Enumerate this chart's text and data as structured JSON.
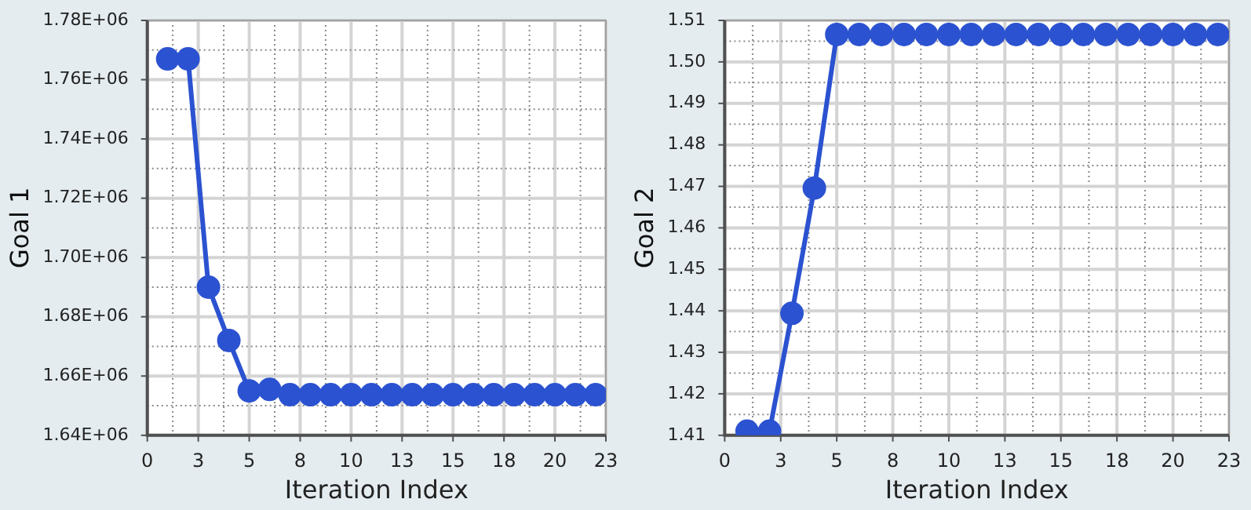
{
  "chart_data": [
    {
      "type": "line",
      "xlabel": "Iteration Index",
      "ylabel": "Goal 1",
      "marker": "circle",
      "grid": true,
      "color": "#2b52d0",
      "x": [
        1,
        2,
        3,
        4,
        5,
        6,
        7,
        8,
        9,
        10,
        11,
        12,
        13,
        14,
        15,
        16,
        17,
        18,
        19,
        20,
        21,
        22
      ],
      "values": [
        1767000,
        1767000,
        1690000,
        1672000,
        1655000,
        1655500,
        1653700,
        1653700,
        1653700,
        1653700,
        1653700,
        1653700,
        1653700,
        1653700,
        1653700,
        1653700,
        1653700,
        1653700,
        1653700,
        1653700,
        1653700,
        1653700
      ],
      "xlim": [
        0,
        22.5
      ],
      "xticks": [
        0,
        {
          "value": 1.25,
          "label": null
        },
        {
          "value": 2.5,
          "label": "3"
        },
        {
          "value": 3.75,
          "label": null
        },
        5,
        {
          "value": 6.25,
          "label": null
        },
        {
          "value": 7.5,
          "label": "8"
        },
        {
          "value": 8.75,
          "label": null
        },
        10,
        {
          "value": 11.25,
          "label": null
        },
        {
          "value": 12.5,
          "label": "13"
        },
        {
          "value": 13.75,
          "label": null
        },
        15,
        {
          "value": 16.25,
          "label": null
        },
        {
          "value": 17.5,
          "label": "18"
        },
        {
          "value": 18.75,
          "label": null
        },
        20,
        {
          "value": 21.25,
          "label": null
        },
        {
          "value": 22.5,
          "label": "23"
        }
      ],
      "ylim": [
        1640000,
        1780000
      ],
      "yticks": [
        {
          "value": 1640000,
          "label": "1.64E+06"
        },
        {
          "value": 1650000,
          "label": null
        },
        {
          "value": 1660000,
          "label": "1.66E+06"
        },
        {
          "value": 1670000,
          "label": null
        },
        {
          "value": 1680000,
          "label": "1.68E+06"
        },
        {
          "value": 1690000,
          "label": null
        },
        {
          "value": 1700000,
          "label": "1.70E+06"
        },
        {
          "value": 1710000,
          "label": null
        },
        {
          "value": 1720000,
          "label": "1.72E+06"
        },
        {
          "value": 1730000,
          "label": null
        },
        {
          "value": 1740000,
          "label": "1.74E+06"
        },
        {
          "value": 1750000,
          "label": null
        },
        {
          "value": 1760000,
          "label": "1.76E+06"
        },
        {
          "value": 1770000,
          "label": null
        },
        {
          "value": 1780000,
          "label": "1.78E+06"
        }
      ]
    },
    {
      "type": "line",
      "xlabel": "Iteration Index",
      "ylabel": "Goal 2",
      "marker": "circle",
      "grid": true,
      "color": "#2b52d0",
      "x": [
        1,
        2,
        3,
        4,
        5,
        6,
        7,
        8,
        9,
        10,
        11,
        12,
        13,
        14,
        15,
        16,
        17,
        18,
        19,
        20,
        21,
        22
      ],
      "values": [
        1.411,
        1.411,
        1.4394,
        1.4696,
        1.5066,
        1.5066,
        1.5066,
        1.5066,
        1.5066,
        1.5066,
        1.5066,
        1.5066,
        1.5066,
        1.5066,
        1.5066,
        1.5066,
        1.5066,
        1.5066,
        1.5066,
        1.5066,
        1.5066,
        1.5066
      ],
      "xlim": [
        0,
        22.5
      ],
      "xticks": [
        0,
        {
          "value": 1.25,
          "label": null
        },
        {
          "value": 2.5,
          "label": "3"
        },
        {
          "value": 3.75,
          "label": null
        },
        5,
        {
          "value": 6.25,
          "label": null
        },
        {
          "value": 7.5,
          "label": "8"
        },
        {
          "value": 8.75,
          "label": null
        },
        10,
        {
          "value": 11.25,
          "label": null
        },
        {
          "value": 12.5,
          "label": "13"
        },
        {
          "value": 13.75,
          "label": null
        },
        15,
        {
          "value": 16.25,
          "label": null
        },
        {
          "value": 17.5,
          "label": "18"
        },
        {
          "value": 18.75,
          "label": null
        },
        20,
        {
          "value": 21.25,
          "label": null
        },
        {
          "value": 22.5,
          "label": "23"
        }
      ],
      "ylim": [
        1.41,
        1.51
      ],
      "yticks": [
        {
          "value": 1.41,
          "label": "1.41"
        },
        {
          "value": 1.415,
          "label": null
        },
        {
          "value": 1.42,
          "label": "1.42"
        },
        {
          "value": 1.425,
          "label": null
        },
        {
          "value": 1.43,
          "label": "1.43"
        },
        {
          "value": 1.435,
          "label": null
        },
        {
          "value": 1.44,
          "label": "1.44"
        },
        {
          "value": 1.445,
          "label": null
        },
        {
          "value": 1.45,
          "label": "1.45"
        },
        {
          "value": 1.455,
          "label": null
        },
        {
          "value": 1.46,
          "label": "1.46"
        },
        {
          "value": 1.465,
          "label": null
        },
        {
          "value": 1.47,
          "label": "1.47"
        },
        {
          "value": 1.475,
          "label": null
        },
        {
          "value": 1.48,
          "label": "1.48"
        },
        {
          "value": 1.485,
          "label": null
        },
        {
          "value": 1.49,
          "label": "1.49"
        },
        {
          "value": 1.495,
          "label": null
        },
        {
          "value": 1.5,
          "label": "1.50"
        },
        {
          "value": 1.505,
          "label": null
        },
        {
          "value": 1.51,
          "label": "1.51"
        }
      ]
    }
  ]
}
